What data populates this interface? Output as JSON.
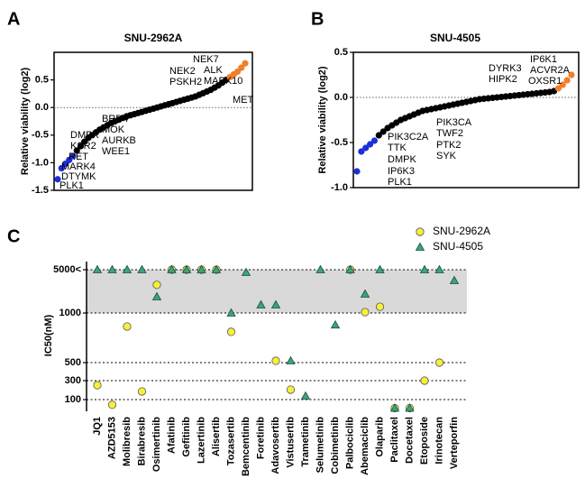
{
  "chart_data": [
    {
      "type": "rank",
      "panel": "A",
      "title": "SNU-2962A",
      "ylabel": "Relative viability (log2)",
      "ylim": [
        -1.5,
        1.0
      ],
      "yticks": [
        -1.5,
        {
          "value": -1.0,
          "label": "-1.0"
        },
        -0.5,
        {
          "value": 0.0,
          "label": "0.0"
        },
        0.5
      ],
      "zero_line": true,
      "values": [
        -1.3,
        -1.1,
        -1.02,
        -0.95,
        -0.88,
        -0.78,
        -0.7,
        -0.62,
        -0.55,
        -0.5,
        -0.45,
        -0.4,
        -0.36,
        -0.32,
        -0.28,
        -0.25,
        -0.22,
        -0.19,
        -0.16,
        -0.14,
        -0.12,
        -0.1,
        -0.08,
        -0.06,
        -0.04,
        -0.02,
        0,
        0.02,
        0.04,
        0.06,
        0.08,
        0.1,
        0.12,
        0.14,
        0.16,
        0.18,
        0.2,
        0.23,
        0.26,
        0.29,
        0.32,
        0.36,
        0.4,
        0.45,
        0.5,
        0.55,
        0.6,
        0.65,
        0.72,
        0.8
      ],
      "colors": [
        "#1f2fd6",
        "#1f2fd6",
        "#1f2fd6",
        "#1f2fd6",
        "#1f2fd6",
        "#000000",
        "#000000",
        "#000000",
        "#000000",
        "#000000",
        "#000000",
        "#000000",
        "#000000",
        "#000000",
        "#000000",
        "#000000",
        "#000000",
        "#000000",
        "#000000",
        "#000000",
        "#000000",
        "#000000",
        "#000000",
        "#000000",
        "#000000",
        "#000000",
        "#000000",
        "#000000",
        "#000000",
        "#000000",
        "#000000",
        "#000000",
        "#000000",
        "#000000",
        "#000000",
        "#000000",
        "#000000",
        "#000000",
        "#000000",
        "#000000",
        "#000000",
        "#000000",
        "#000000",
        "#000000",
        "#000000",
        "#f07f2a",
        "#f07f2a",
        "#f07f2a",
        "#f07f2a",
        "#f07f2a"
      ],
      "annotations": [
        "NEK7",
        "ALK",
        "MAPK10",
        "NEK2",
        "PSKH2",
        "MET",
        "BRD4",
        "MOK",
        "AURKB",
        "WEE1",
        "DMPK",
        "KSR2",
        "RET",
        "MARK4",
        "DTYMK",
        "PLK1"
      ]
    },
    {
      "type": "rank",
      "panel": "B",
      "title": "SNU-4505",
      "ylabel": "Relative viability (log2)",
      "ylim": [
        -1.0,
        0.5
      ],
      "yticks": [
        {
          "value": -1.0,
          "label": "-1.0"
        },
        -0.5,
        {
          "value": 0.0,
          "label": "0.0"
        },
        0.5
      ],
      "zero_line": true,
      "values": [
        -0.82,
        -0.6,
        -0.56,
        -0.52,
        -0.48,
        -0.42,
        -0.38,
        -0.34,
        -0.31,
        -0.28,
        -0.25,
        -0.23,
        -0.21,
        -0.19,
        -0.17,
        -0.15,
        -0.14,
        -0.13,
        -0.12,
        -0.11,
        -0.1,
        -0.09,
        -0.08,
        -0.07,
        -0.06,
        -0.05,
        -0.04,
        -0.03,
        -0.02,
        -0.015,
        -0.01,
        -0.005,
        0,
        0.005,
        0.01,
        0.015,
        0.02,
        0.025,
        0.03,
        0.035,
        0.04,
        0.045,
        0.05,
        0.055,
        0.06,
        0.07,
        0.1,
        0.14,
        0.19,
        0.25
      ],
      "colors": [
        "#1f2fd6",
        "#1f2fd6",
        "#1f2fd6",
        "#1f2fd6",
        "#1f2fd6",
        "#000000",
        "#000000",
        "#000000",
        "#000000",
        "#000000",
        "#000000",
        "#000000",
        "#000000",
        "#000000",
        "#000000",
        "#000000",
        "#000000",
        "#000000",
        "#000000",
        "#000000",
        "#000000",
        "#000000",
        "#000000",
        "#000000",
        "#000000",
        "#000000",
        "#000000",
        "#000000",
        "#000000",
        "#000000",
        "#000000",
        "#000000",
        "#000000",
        "#000000",
        "#000000",
        "#000000",
        "#000000",
        "#000000",
        "#000000",
        "#000000",
        "#000000",
        "#000000",
        "#000000",
        "#000000",
        "#000000",
        "#000000",
        "#f07f2a",
        "#f07f2a",
        "#f07f2a",
        "#f07f2a"
      ],
      "annotations": [
        "DYRK3",
        "HIPK2",
        "IP6K1",
        "ACVR2A",
        "OXSR1",
        "PIK3CA",
        "TWF2",
        "PTK2",
        "SYK",
        "PIK3C2A",
        "TTK",
        "DMPK",
        "IP6K3",
        "PLK1"
      ]
    },
    {
      "type": "dot",
      "panel": "C",
      "ylabel": "IC50(nM)",
      "yticks": [
        100,
        300,
        500,
        1000,
        {
          "value": 5000,
          "label": "5000<"
        }
      ],
      "grid": true,
      "shade": [
        1000,
        5000
      ],
      "shade_color": "#d9d9d9",
      "categories": [
        "JQ1",
        "AZD5153",
        "Molibresib",
        "Birabresib",
        "Osimertinib",
        "Afatinib",
        "Gefitinib",
        "Lazertinib",
        "Alisertib",
        "Tozasertib",
        "Bemcentinib",
        "Foretinib",
        "Adavosertib",
        "Vistusertib",
        "Trametinib",
        "Selumetinib",
        "Cobimetinib",
        "Palbociclib",
        "Abemaciclib",
        "Olaparib",
        "Paclitaxel",
        "Docetaxel",
        "Etoposide",
        "Irinotecan",
        "Verteporfin"
      ],
      "series": [
        {
          "name": "SNU-2962A",
          "color": "#f6ef3c",
          "marker": "circle",
          "values": [
            252,
            45,
            864,
            186,
            3600,
            5000,
            5000,
            5000,
            5000,
            810,
            null,
            null,
            518,
            205,
            null,
            null,
            null,
            5000,
            1080,
            1580,
            10,
            10,
            300,
            500,
            null
          ]
        },
        {
          "name": "SNU-4505",
          "color": "#3aa57a",
          "marker": "triangle",
          "values": [
            5000,
            5000,
            5000,
            5000,
            2500,
            5000,
            5000,
            5000,
            5000,
            1000,
            4750,
            1750,
            1750,
            518,
            138,
            5000,
            880,
            5000,
            2750,
            5000,
            10,
            10,
            5000,
            5000,
            4000
          ]
        }
      ]
    }
  ]
}
